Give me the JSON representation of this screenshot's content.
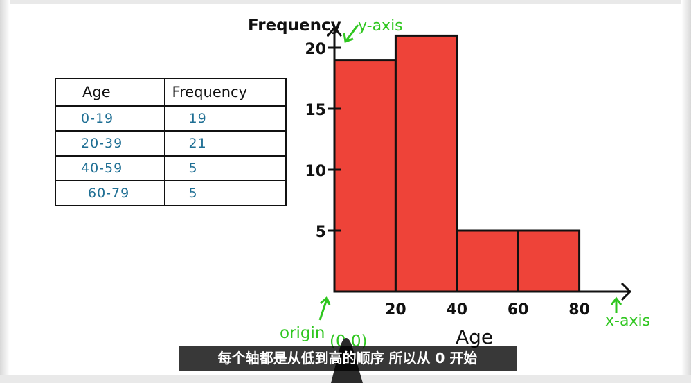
{
  "table": {
    "headers": [
      "Age",
      "Frequency"
    ],
    "rows": [
      [
        "0-19",
        "19"
      ],
      [
        "20-39",
        "21"
      ],
      [
        "40-59",
        "5"
      ],
      [
        "60-79",
        "5"
      ]
    ]
  },
  "chart_data": {
    "type": "bar",
    "subtype": "histogram",
    "bins": [
      [
        0,
        20
      ],
      [
        20,
        40
      ],
      [
        40,
        60
      ],
      [
        60,
        80
      ]
    ],
    "values": [
      19,
      21,
      5,
      5
    ],
    "xlabel": "Age",
    "ylabel": "Frequency",
    "xticks": [
      "20",
      "40",
      "60",
      "80"
    ],
    "yticks": [
      "5",
      "10",
      "15",
      "20"
    ],
    "xlim": [
      0,
      80
    ],
    "ylim": [
      0,
      22
    ],
    "bar_color": "#ee4339",
    "annotations": {
      "y_axis": "y-axis",
      "x_axis": "x-axis",
      "origin": "origin",
      "origin_coord": "(0,0)"
    },
    "annotation_color": "#2fc61f"
  },
  "subtitle": "每个轴都是从低到高的顺序 所以从 0 开始"
}
